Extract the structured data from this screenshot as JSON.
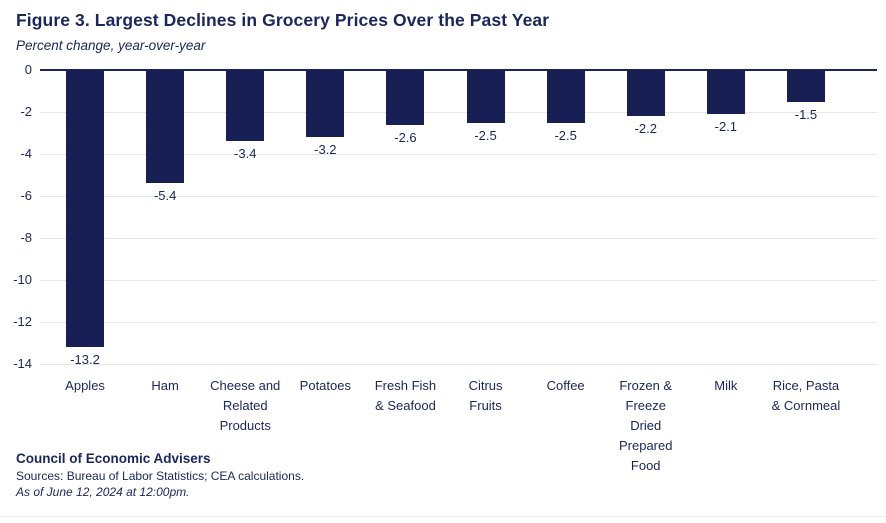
{
  "chart_data": {
    "type": "bar",
    "title": "Figure 3. Largest Declines in Grocery Prices Over the Past Year",
    "subtitle": "Percent change, year-over-year",
    "categories": [
      "Apples",
      "Ham",
      "Cheese and\nRelated\nProducts",
      "Potatoes",
      "Fresh Fish\n& Seafood",
      "Citrus\nFruits",
      "Coffee",
      "Frozen &\nFreeze\nDried\nPrepared\nFood",
      "Milk",
      "Rice, Pasta\n& Cornmeal"
    ],
    "values": [
      -13.2,
      -5.4,
      -3.4,
      -3.2,
      -2.6,
      -2.5,
      -2.5,
      -2.2,
      -2.1,
      -1.5
    ],
    "value_labels": [
      "-13.2",
      "-5.4",
      "-3.4",
      "-3.2",
      "-2.6",
      "-2.5",
      "-2.5",
      "-2.2",
      "-2.1",
      "-1.5"
    ],
    "xlabel": "",
    "ylabel": "",
    "ylim": [
      0,
      -14
    ],
    "yticks": [
      0,
      -2,
      -4,
      -6,
      -8,
      -10,
      -12,
      -14
    ],
    "grid": true,
    "legend": "none"
  },
  "footer": {
    "org": "Council of Economic Advisers",
    "sources": "Sources: Bureau of Labor Statistics; CEA calculations.",
    "as_of": "As of June 12, 2024 at 12:00pm."
  },
  "colors": {
    "bar": "#171f55",
    "text": "#1b265b",
    "gridline": "#e6e7ea",
    "axis_line": "#1b265b",
    "background": "#ffffff"
  }
}
